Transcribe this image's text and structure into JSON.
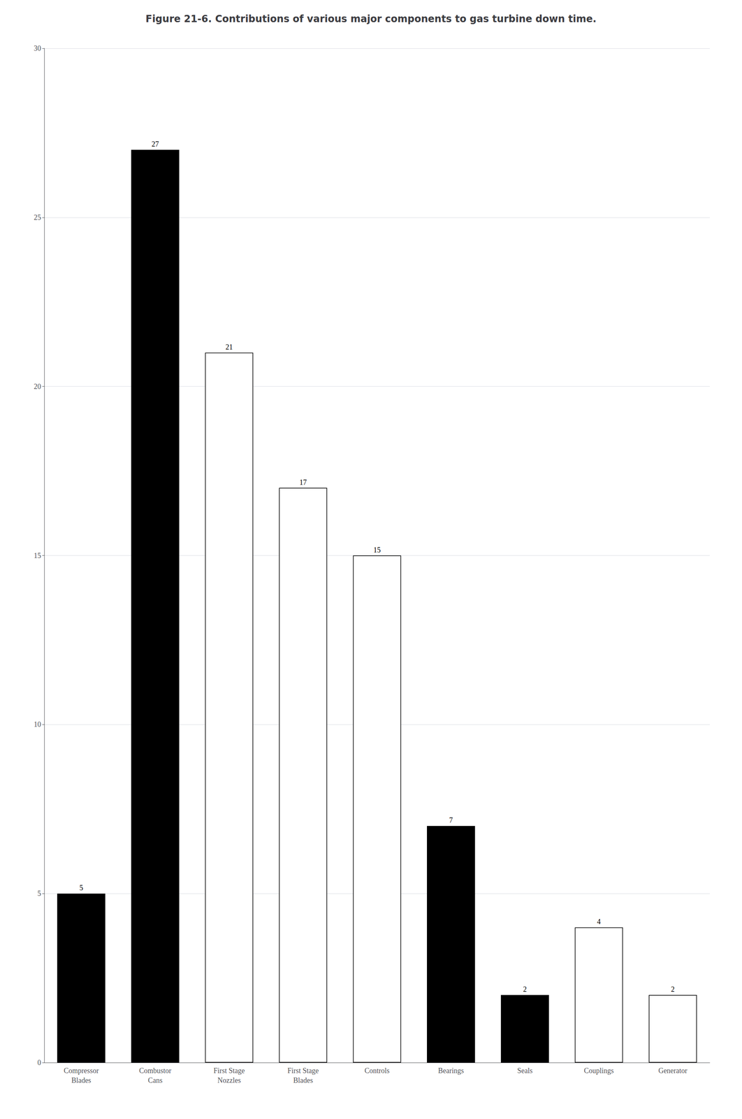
{
  "chart_data": {
    "type": "bar",
    "title": "Figure 21-6. Contributions of various major components to gas turbine down time.",
    "categories": [
      "Compressor\nBlades",
      "Combustor\nCans",
      "First Stage\nNozzles",
      "First Stage\nBlades",
      "Controls",
      "Bearings",
      "Seals",
      "Couplings",
      "Generator"
    ],
    "values": [
      5,
      27,
      21,
      17,
      15,
      7,
      2,
      4,
      2
    ],
    "colors": [
      "black",
      "black",
      "white",
      "white",
      "white",
      "black",
      "black",
      "white",
      "white"
    ],
    "ylim": [
      0,
      30
    ],
    "yticks": [
      0,
      5,
      10,
      15,
      20,
      25,
      30
    ],
    "grid": true,
    "data_labels": true
  }
}
